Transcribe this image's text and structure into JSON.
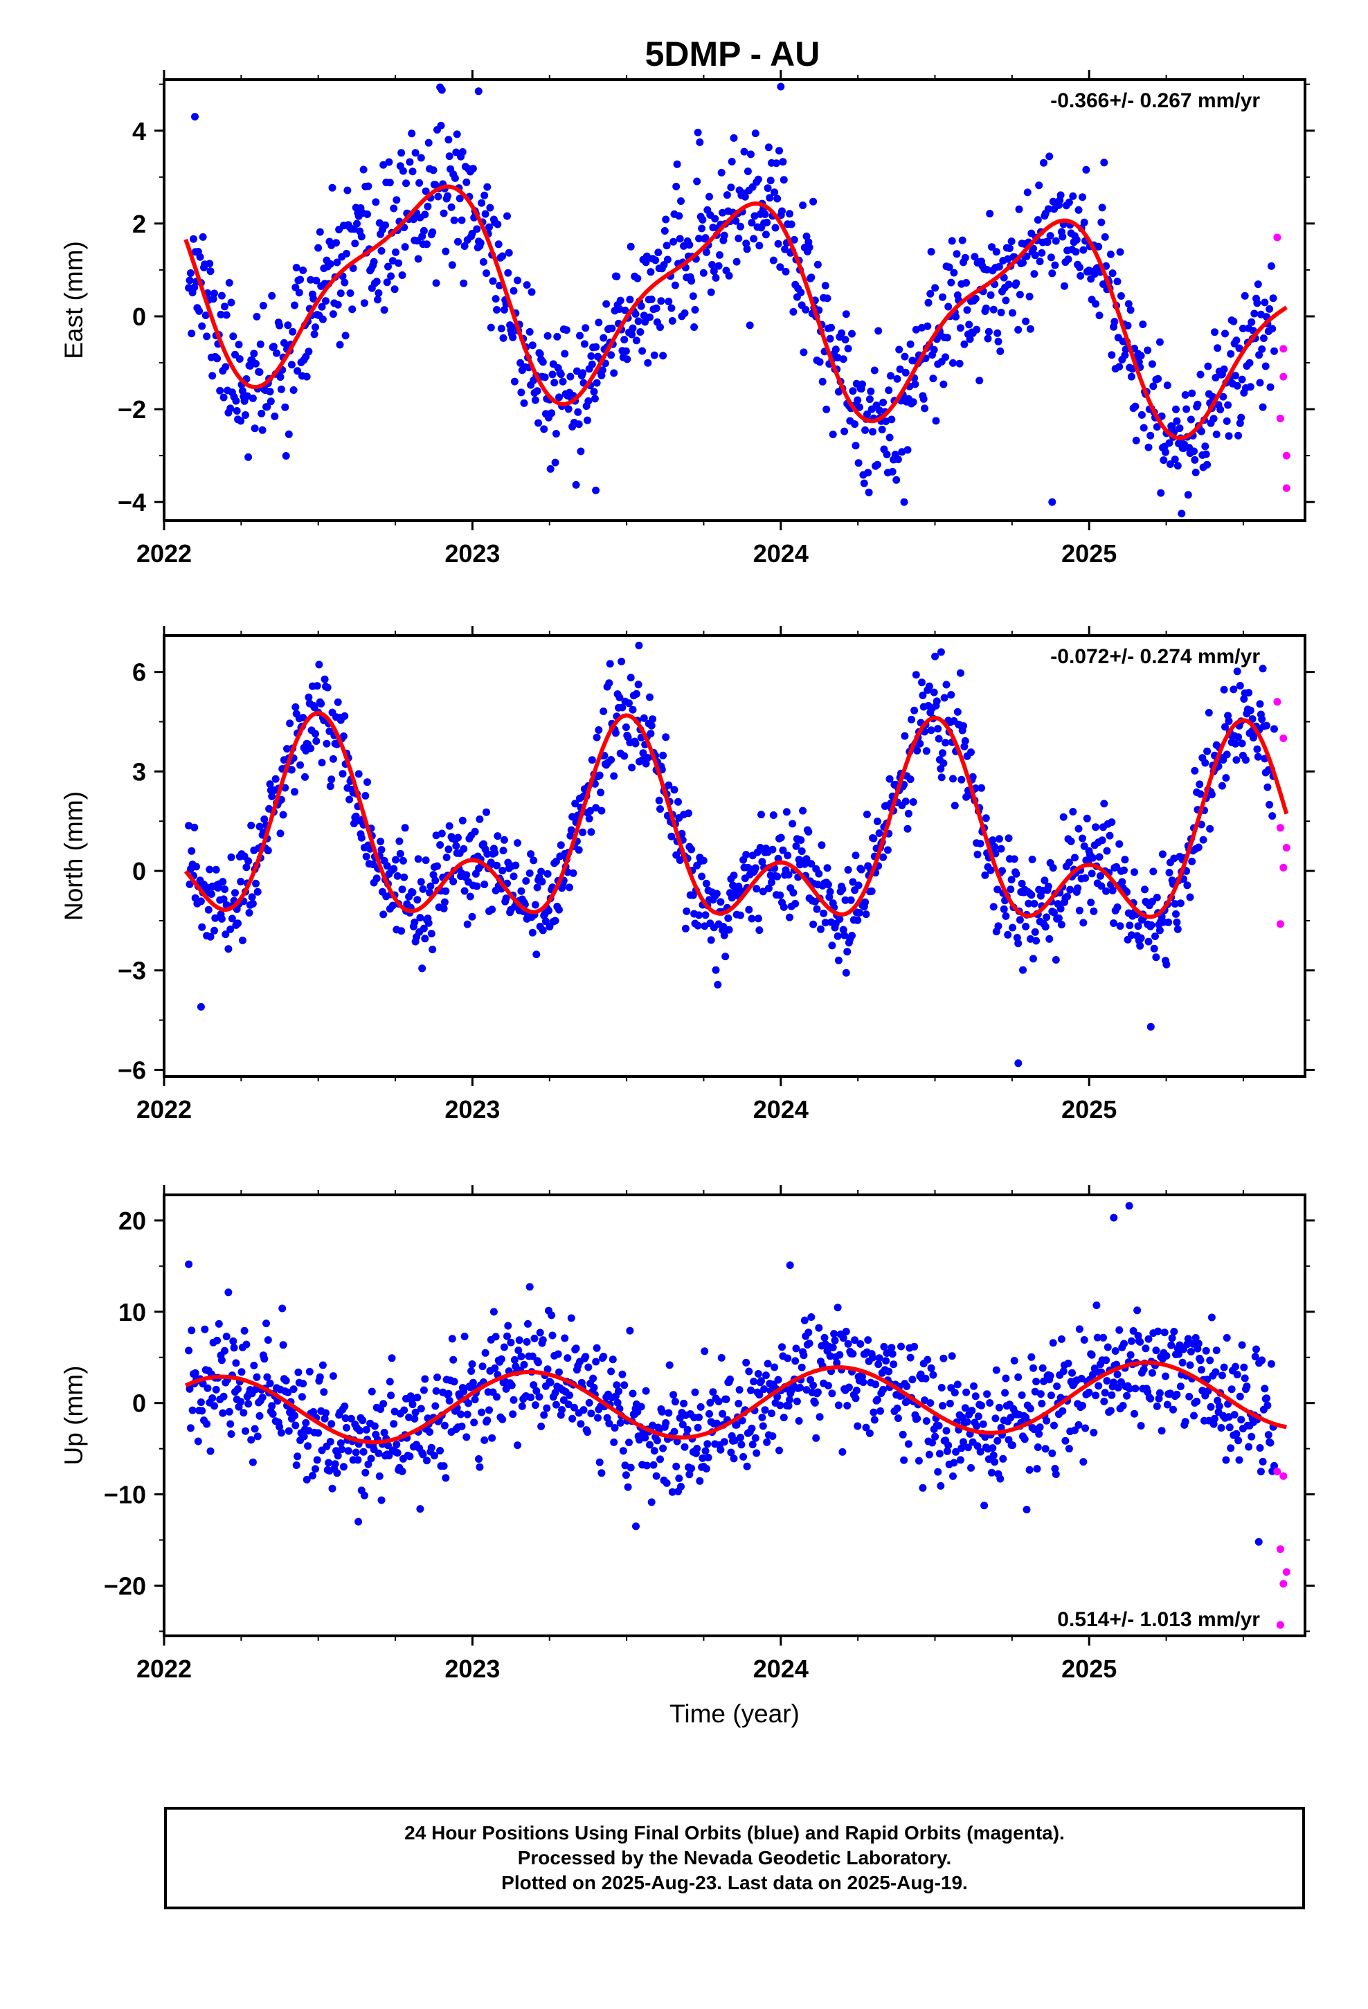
{
  "title": "5DMP - AU",
  "caption": {
    "line1": "24 Hour Positions Using Final Orbits (blue) and Rapid Orbits (magenta).",
    "line2": "Processed by the Nevada Geodetic Laboratory.",
    "line3": "Plotted on 2025-Aug-23. Last data on 2025-Aug-19."
  },
  "colors": {
    "final": "#0000ff",
    "rapid": "#ff00ff",
    "model": "#ff0000"
  },
  "chart_data": [
    {
      "type": "scatter",
      "panel": "east",
      "ylabel": "East (mm)",
      "xlabel": "",
      "rate_label": "-0.366+/- 0.267 mm/yr",
      "rate_position": "top-right",
      "xlim": [
        2022.0,
        2025.7
      ],
      "ylim": [
        -4.4,
        5.1
      ],
      "xticks": [
        2022,
        2023,
        2024,
        2025
      ],
      "yticks": [
        -4,
        -2,
        0,
        2,
        4
      ],
      "series": [
        {
          "name": "Final Orbits (blue)",
          "role": "final",
          "seed": 11,
          "x_start": 2022.08,
          "x_end": 2025.6,
          "n": 1150,
          "noise": 0.75,
          "outliers": [
            [
              2022.1,
              4.3
            ],
            [
              2023.02,
              4.85
            ],
            [
              2024.0,
              4.95
            ],
            [
              2024.88,
              -4.0
            ],
            [
              2025.3,
              -4.25
            ],
            [
              2023.4,
              -3.75
            ],
            [
              2024.4,
              -4.0
            ]
          ]
        },
        {
          "name": "Rapid Orbits (magenta)",
          "role": "rapid",
          "x": [
            2025.61,
            2025.63,
            2025.62,
            2025.64,
            2025.63,
            2025.64
          ],
          "y": [
            1.7,
            -0.7,
            -2.2,
            -3.0,
            -1.3,
            -3.7
          ]
        }
      ],
      "model": {
        "name": "fit",
        "offset": 0.37,
        "trend": -0.366,
        "ref": 2023.8,
        "cos1": 1.1,
        "sin1": -1.7,
        "cos2": 0.6,
        "sin2": 0.0,
        "x_start": 2022.07,
        "x_end": 2025.64
      }
    },
    {
      "type": "scatter",
      "panel": "north",
      "ylabel": "North (mm)",
      "xlabel": "",
      "rate_label": "-0.072+/- 0.274 mm/yr",
      "rate_position": "top-right",
      "xlim": [
        2022.0,
        2025.7
      ],
      "ylim": [
        -6.2,
        7.1
      ],
      "xticks": [
        2022,
        2023,
        2024,
        2025
      ],
      "yticks": [
        -6,
        -3,
        0,
        3,
        6
      ],
      "series": [
        {
          "name": "Final Orbits (blue)",
          "role": "final",
          "seed": 23,
          "x_start": 2022.08,
          "x_end": 2025.6,
          "n": 1150,
          "noise": 0.75,
          "outliers": [
            [
              2023.54,
              6.8
            ],
            [
              2024.52,
              6.6
            ],
            [
              2024.77,
              -5.8
            ],
            [
              2025.2,
              -4.7
            ],
            [
              2022.12,
              -4.1
            ]
          ]
        },
        {
          "name": "Rapid Orbits (magenta)",
          "role": "rapid",
          "x": [
            2025.61,
            2025.63,
            2025.62,
            2025.64,
            2025.63,
            2025.62
          ],
          "y": [
            5.1,
            4.0,
            1.3,
            0.7,
            0.1,
            -1.6
          ]
        }
      ],
      "model": {
        "name": "fit",
        "offset": 0.77,
        "trend": -0.072,
        "ref": 2023.8,
        "cos1": -2.2,
        "sin1": 0.0,
        "cos2": 1.7,
        "sin2": 0.0,
        "x_start": 2022.07,
        "x_end": 2025.64
      }
    },
    {
      "type": "scatter",
      "panel": "up",
      "ylabel": "Up (mm)",
      "xlabel": "Time (year)",
      "rate_label": "0.514+/- 1.013 mm/yr",
      "rate_position": "bottom-right",
      "xlim": [
        2022.0,
        2025.7
      ],
      "ylim": [
        -25.5,
        22.8
      ],
      "xticks": [
        2022,
        2023,
        2024,
        2025
      ],
      "yticks": [
        -20,
        -10,
        0,
        10,
        20
      ],
      "series": [
        {
          "name": "Final Orbits (blue)",
          "role": "final",
          "seed": 37,
          "x_start": 2022.08,
          "x_end": 2025.6,
          "n": 1150,
          "noise": 3.2,
          "outliers": [
            [
              2025.13,
              21.6
            ],
            [
              2025.08,
              20.3
            ],
            [
              2022.08,
              15.2
            ],
            [
              2024.03,
              15.1
            ],
            [
              2023.53,
              -13.5
            ],
            [
              2025.55,
              -15.2
            ],
            [
              2022.63,
              -13.0
            ]
          ]
        },
        {
          "name": "Rapid Orbits (magenta)",
          "role": "rapid",
          "x": [
            2025.61,
            2025.63,
            2025.62,
            2025.64,
            2025.63,
            2025.62
          ],
          "y": [
            -7.5,
            -8.0,
            -16.0,
            -18.5,
            -19.8,
            -24.3
          ]
        }
      ],
      "model": {
        "name": "fit",
        "offset": 0.0,
        "trend": 0.514,
        "ref": 2023.8,
        "cos1": 1.5,
        "sin1": 3.4,
        "cos2": 0.0,
        "sin2": 0.0,
        "x_start": 2022.07,
        "x_end": 2025.64
      }
    }
  ]
}
